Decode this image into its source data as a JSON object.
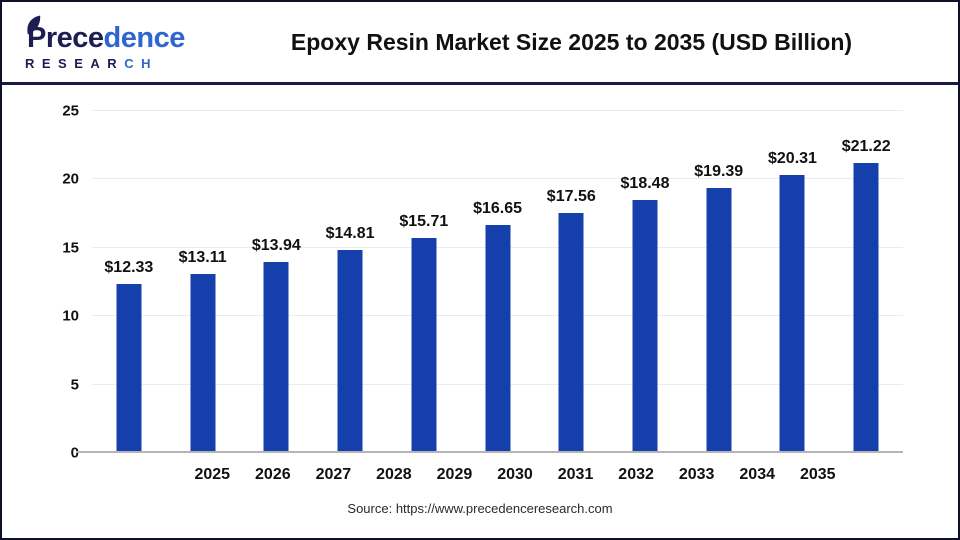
{
  "header": {
    "title": "Epoxy Resin Market Size 2025 to 2035 (USD Billion)",
    "logo": {
      "name_dark": "Prece",
      "name_blue": "dence",
      "sub_dark": "RESEAR",
      "sub_blue": "CH",
      "color_dark": "#1d1d52",
      "color_blue": "#2e66d0"
    }
  },
  "chart_data": {
    "type": "bar",
    "title": "Epoxy Resin Market Size 2025 to 2035 (USD Billion)",
    "categories": [
      "2025",
      "2026",
      "2027",
      "2028",
      "2029",
      "2030",
      "2031",
      "2032",
      "2033",
      "2034",
      "2035"
    ],
    "values": [
      12.33,
      13.11,
      13.94,
      14.81,
      15.71,
      16.65,
      17.56,
      18.48,
      19.39,
      20.31,
      21.22
    ],
    "value_labels": [
      "$12.33",
      "$13.11",
      "$13.94",
      "$14.81",
      "$15.71",
      "$16.65",
      "$17.56",
      "$18.48",
      "$19.39",
      "$20.31",
      "$21.22"
    ],
    "xlabel": "",
    "ylabel": "",
    "ylim": [
      0,
      25
    ],
    "yticks": [
      0,
      5,
      10,
      15,
      20,
      25
    ],
    "grid": true,
    "legend_position": "none",
    "bar_color": "#1540ab"
  },
  "footer": {
    "source": "Source: https://www.precedenceresearch.com"
  }
}
